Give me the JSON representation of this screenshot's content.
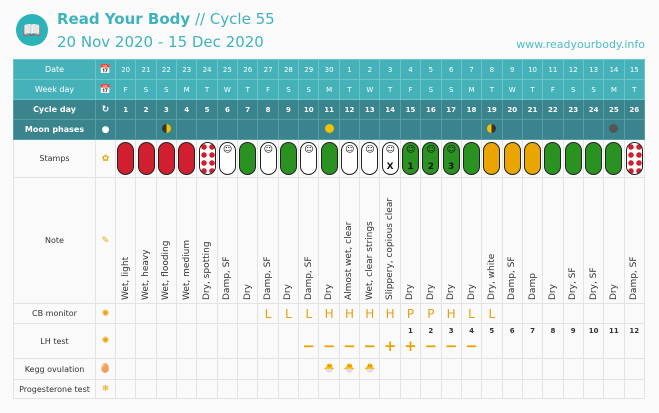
{
  "header": {
    "brand": "Read Your Body",
    "cycle": "// Cycle 55",
    "range": "20 Nov 2020 - 15 Dec 2020",
    "url": "www.readyourbody.info"
  },
  "rows": {
    "date": "Date",
    "weekday": "Week day",
    "cycleday": "Cycle day",
    "moon": "Moon phases",
    "stamps": "Stamps",
    "note": "Note",
    "cb": "CB monitor",
    "lh": "LH test",
    "kegg": "Kegg ovulation",
    "prog": "Progesterone test"
  },
  "dates": [
    "20",
    "21",
    "22",
    "23",
    "24",
    "25",
    "26",
    "27",
    "28",
    "29",
    "30",
    "1",
    "2",
    "3",
    "4",
    "5",
    "6",
    "7",
    "8",
    "9",
    "10",
    "11",
    "12",
    "13",
    "14",
    "15"
  ],
  "weekdays": [
    "F",
    "S",
    "S",
    "M",
    "T",
    "W",
    "T",
    "F",
    "S",
    "S",
    "M",
    "T",
    "W",
    "T",
    "F",
    "S",
    "S",
    "M",
    "T",
    "W",
    "T",
    "F",
    "S",
    "S",
    "M",
    "T"
  ],
  "cycledays": [
    "1",
    "2",
    "3",
    "4",
    "5",
    "6",
    "7",
    "8",
    "9",
    "10",
    "11",
    "12",
    "13",
    "14",
    "15",
    "16",
    "17",
    "18",
    "19",
    "20",
    "21",
    "22",
    "23",
    "24",
    "25",
    "26"
  ],
  "moon": [
    "",
    "",
    "first-quarter",
    "",
    "",
    "",
    "",
    "",
    "",
    "",
    "full",
    "",
    "",
    "",
    "",
    "",
    "",
    "",
    "last-quarter",
    "",
    "",
    "",
    "",
    "",
    "new",
    ""
  ],
  "stamps": [
    {
      "c": "red"
    },
    {
      "c": "red"
    },
    {
      "c": "red"
    },
    {
      "c": "red"
    },
    {
      "c": "dots"
    },
    {
      "c": "white",
      "face": true
    },
    {
      "c": "green"
    },
    {
      "c": "white",
      "face": true
    },
    {
      "c": "green"
    },
    {
      "c": "white",
      "face": true
    },
    {
      "c": "green"
    },
    {
      "c": "white",
      "face": true
    },
    {
      "c": "white",
      "face": true
    },
    {
      "c": "white",
      "face": true,
      "n": "X"
    },
    {
      "c": "green",
      "face": true,
      "n": "1"
    },
    {
      "c": "green",
      "face": true,
      "n": "2"
    },
    {
      "c": "green",
      "face": true,
      "n": "3"
    },
    {
      "c": "green"
    },
    {
      "c": "yellow"
    },
    {
      "c": "yellow"
    },
    {
      "c": "yellow"
    },
    {
      "c": "green"
    },
    {
      "c": "green"
    },
    {
      "c": "green"
    },
    {
      "c": "green"
    },
    {
      "c": "dots"
    }
  ],
  "notes": [
    "Wet, light",
    "Wet, heavy",
    "Wet, flooding",
    "Wet, medium",
    "Dry, spotting",
    "Damp, SF",
    "Dry",
    "Damp, SF",
    "Dry",
    "Damp, SF",
    "Dry",
    "Almost wet, clear",
    "Wet, clear strings",
    "Slippery, copious clear",
    "Dry",
    "Dry",
    "Dry",
    "Dry",
    "Dry, white",
    "Damp, SF",
    "Damp",
    "Dry",
    "Dry, SF",
    "Dry, SF",
    "Dry",
    "Damp, SF"
  ],
  "cb": [
    "",
    "",
    "",
    "",
    "",
    "",
    "",
    "L",
    "L",
    "L",
    "H",
    "H",
    "H",
    "H",
    "P",
    "P",
    "H",
    "L",
    "L",
    "",
    "",
    "",
    "",
    "",
    "",
    ""
  ],
  "lh_day": [
    "",
    "",
    "",
    "",
    "",
    "",
    "",
    "",
    "",
    "",
    "",
    "",
    "",
    "",
    "1",
    "2",
    "3",
    "4",
    "5",
    "6",
    "7",
    "8",
    "9",
    "10",
    "11",
    "12"
  ],
  "lh": [
    "",
    "",
    "",
    "",
    "",
    "",
    "",
    "",
    "",
    "−",
    "−",
    "−",
    "−",
    "+",
    "+",
    "−",
    "−",
    "−",
    "",
    "",
    "",
    "",
    "",
    "",
    "",
    ""
  ],
  "kegg": [
    "",
    "",
    "",
    "",
    "",
    "",
    "",
    "",
    "",
    "",
    "🐣",
    "🐣",
    "🐣",
    "",
    "",
    "",
    "",
    "",
    "",
    "",
    "",
    "",
    "",
    "",
    "",
    ""
  ],
  "colors": {
    "teal": "#45b2ba",
    "dark_teal": "#3a858d",
    "red": "#d11f2f",
    "green": "#2a9221",
    "yellow": "#eba500"
  }
}
